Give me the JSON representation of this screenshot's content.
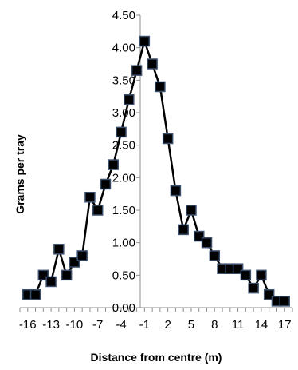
{
  "chart_data": {
    "type": "line",
    "title": "",
    "xlabel": "Distance from centre (m)",
    "ylabel": "Grams per tray",
    "x_tick_labels": [
      "-16",
      "-13",
      "-10",
      "-7",
      "-4",
      "-1",
      "2",
      "5",
      "8",
      "11",
      "14",
      "17"
    ],
    "y_tick_labels": [
      "0.00",
      "0.50",
      "1.00",
      "1.50",
      "2.00",
      "2.50",
      "3.00",
      "3.50",
      "4.00",
      "4.50"
    ],
    "ylim": [
      0,
      4.5
    ],
    "xlim": [
      -17,
      18
    ],
    "series": [
      {
        "name": "",
        "color": "#000000",
        "marker_color": "#000000",
        "marker_edge": "#3a4f6e",
        "x": [
          -16,
          -15,
          -14,
          -13,
          -12,
          -11,
          -10,
          -9,
          -8,
          -7,
          -6,
          -5,
          -4,
          -3,
          -2,
          -1,
          0,
          1,
          2,
          3,
          4,
          5,
          6,
          7,
          8,
          9,
          10,
          11,
          12,
          13,
          14,
          15,
          16,
          17
        ],
        "values": [
          0.2,
          0.2,
          0.5,
          0.4,
          0.9,
          0.5,
          0.7,
          0.8,
          1.7,
          1.5,
          1.9,
          2.2,
          2.7,
          3.2,
          3.65,
          4.1,
          3.75,
          3.4,
          2.6,
          1.8,
          1.2,
          1.5,
          1.1,
          1.0,
          0.8,
          0.6,
          0.6,
          0.6,
          0.5,
          0.3,
          0.5,
          0.2,
          0.1,
          0.1
        ]
      }
    ]
  }
}
